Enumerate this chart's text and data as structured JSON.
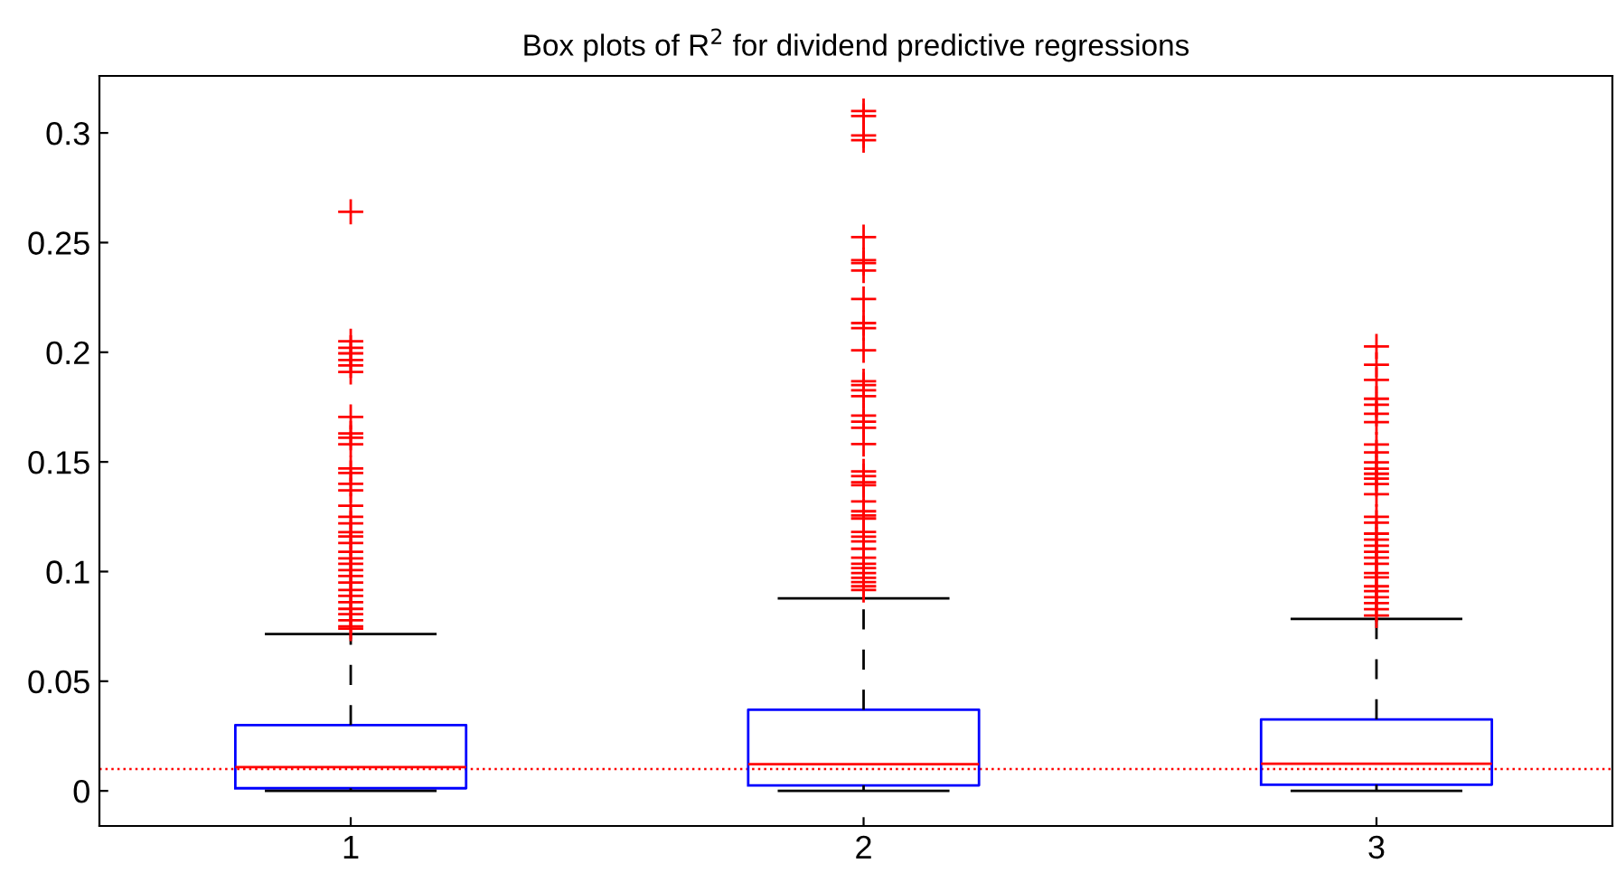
{
  "chart_data": {
    "type": "box",
    "title": "Box plots of R$^{2}$ for dividend predictive regressions",
    "categories": [
      "1",
      "2",
      "3"
    ],
    "color": "#0000ff",
    "marker": "cross",
    "grid": false,
    "ylim": [
      -0.016,
      0.326
    ],
    "yticks": [
      0,
      0.05,
      0.1,
      0.15,
      0.2,
      0.25,
      0.3
    ],
    "boxes": [
      {
        "low": 0,
        "q1": 0.0012,
        "median": 0.0108,
        "q3": 0.03,
        "high": 0.0715,
        "outliers": [
          0.264,
          0.205,
          0.202,
          0.1995,
          0.1965,
          0.194,
          0.191,
          0.1705,
          0.163,
          0.161,
          0.158,
          0.147,
          0.145,
          0.14,
          0.137,
          0.13,
          0.125,
          0.122,
          0.118,
          0.116,
          0.113,
          0.109,
          0.106,
          0.1035,
          0.1007,
          0.098,
          0.095,
          0.0916,
          0.0889,
          0.086,
          0.083,
          0.0806,
          0.0778,
          0.075,
          0.074
        ]
      },
      {
        "low": 0,
        "q1": 0.0025,
        "median": 0.0122,
        "q3": 0.037,
        "high": 0.0878,
        "outliers": [
          0.31,
          0.3077,
          0.2989,
          0.2967,
          0.2525,
          0.242,
          0.2407,
          0.2373,
          0.2243,
          0.2133,
          0.211,
          0.2009,
          0.1868,
          0.185,
          0.1827,
          0.18,
          0.1711,
          0.1683,
          0.1656,
          0.1581,
          0.1457,
          0.1435,
          0.1407,
          0.1394,
          0.132,
          0.1275,
          0.1256,
          0.1242,
          0.1181,
          0.1159,
          0.1137,
          0.1104,
          0.1063,
          0.1035,
          0.1016,
          0.0993,
          0.0972,
          0.0952,
          0.0933,
          0.0916
        ]
      },
      {
        "low": 0,
        "q1": 0.0028,
        "median": 0.0124,
        "q3": 0.0326,
        "high": 0.0784,
        "outliers": [
          0.2026,
          0.1943,
          0.1874,
          0.1788,
          0.1761,
          0.1719,
          0.1681,
          0.1579,
          0.1543,
          0.1498,
          0.1469,
          0.1446,
          0.1424,
          0.1399,
          0.1353,
          0.125,
          0.1223,
          0.1173,
          0.1146,
          0.1118,
          0.109,
          0.1063,
          0.1035,
          0.0993,
          0.0974,
          0.0933,
          0.0911,
          0.0883,
          0.0856,
          0.0828,
          0.08
        ]
      }
    ],
    "ref_lines": [
      {
        "axis": "y",
        "value": 0.01,
        "color": "#ff0000",
        "line_style": "dotted"
      }
    ]
  }
}
